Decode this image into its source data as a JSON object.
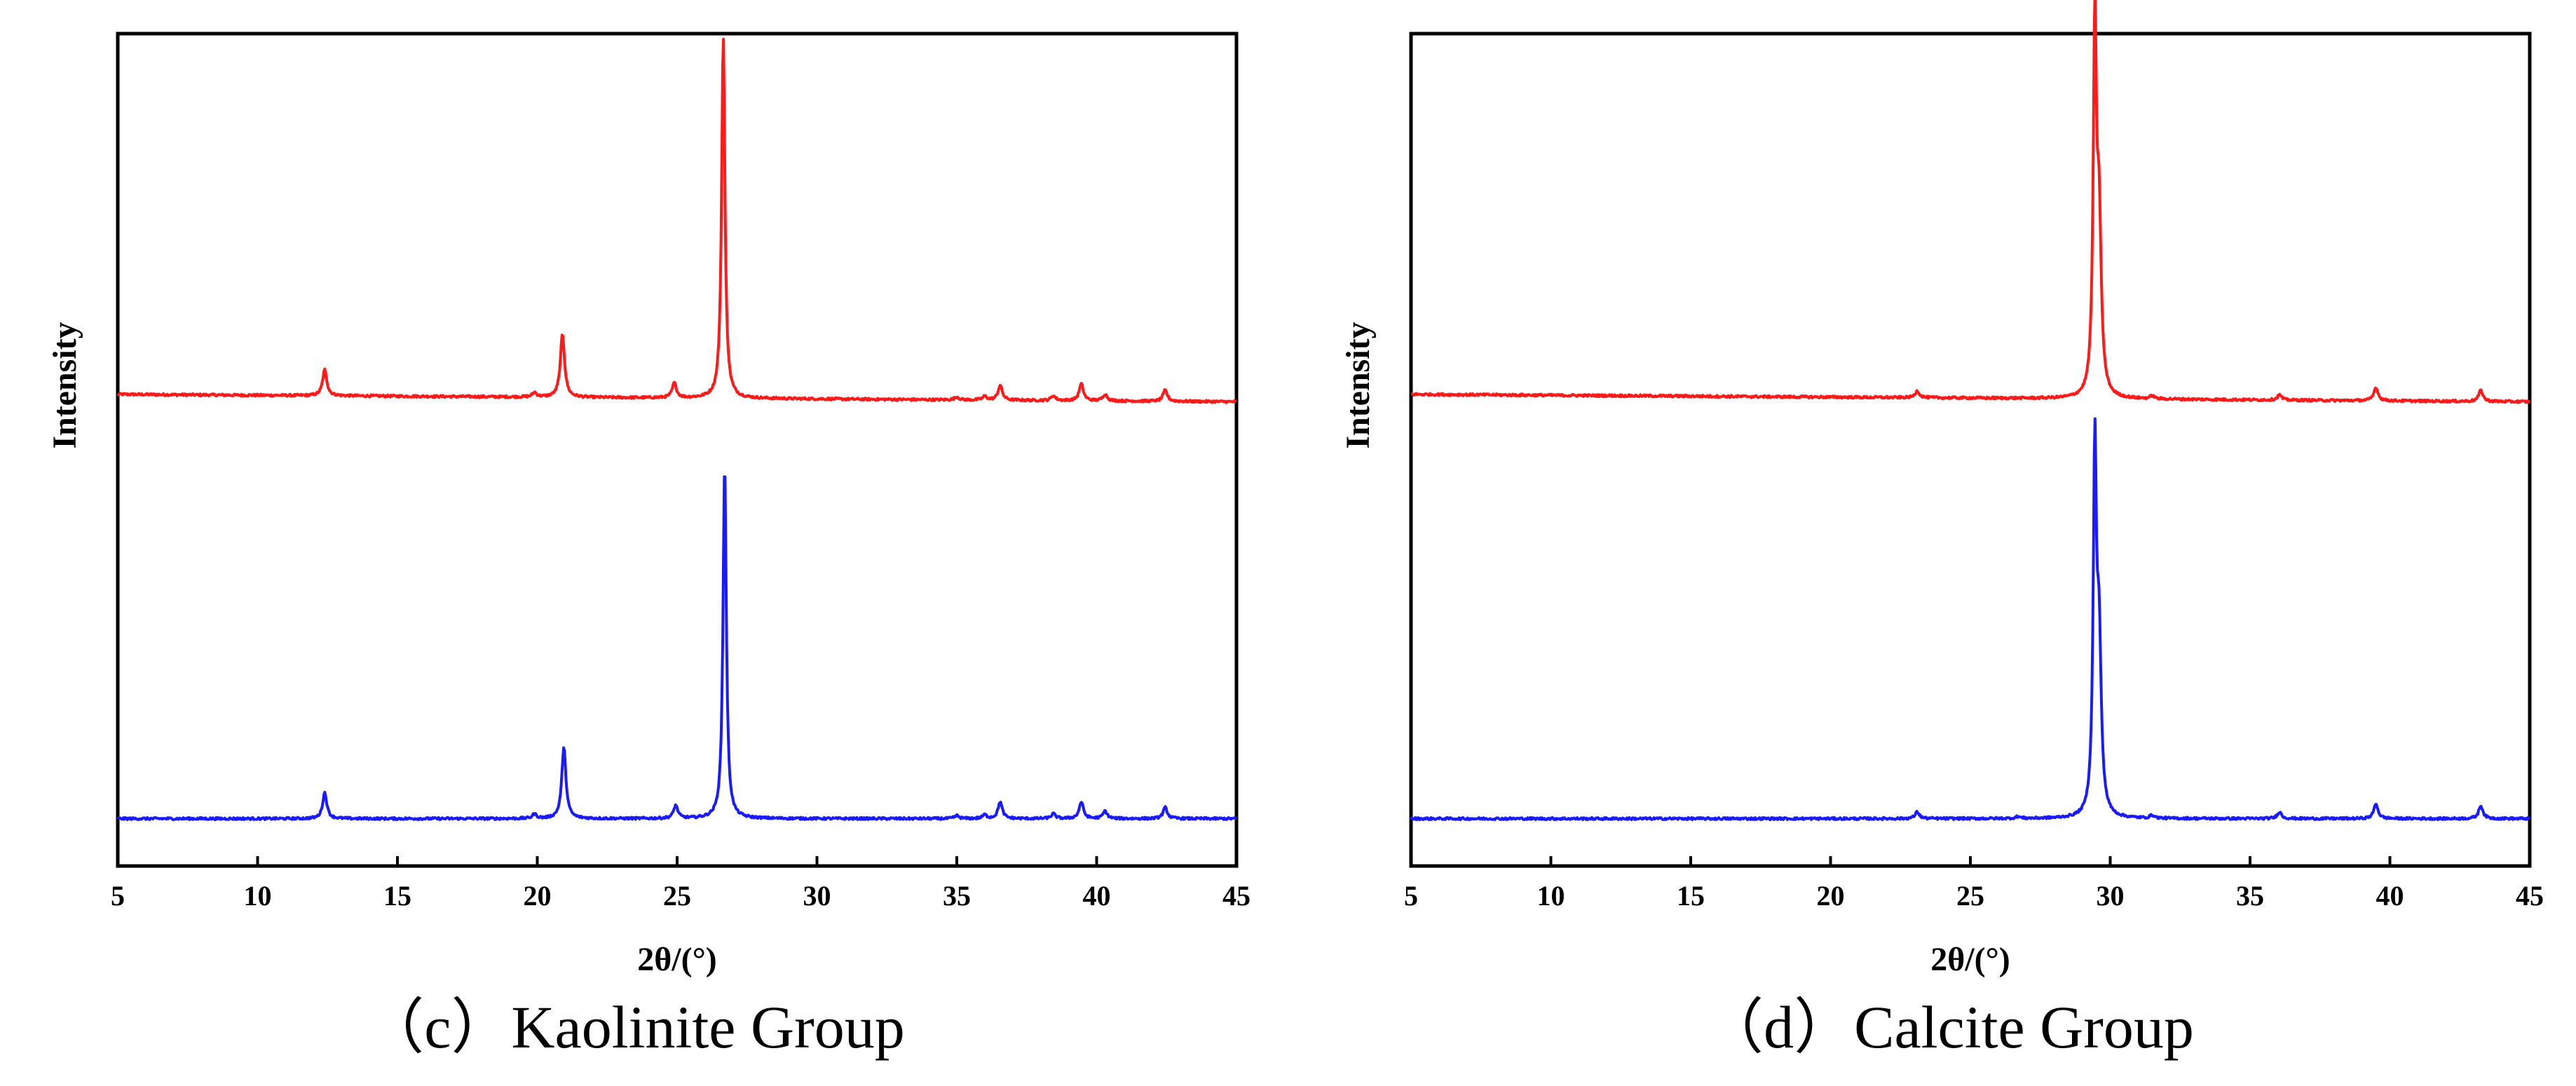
{
  "chart_data": [
    {
      "type": "line",
      "caption": "（c）Kaolinite Group",
      "xlabel": "2θ/(°)",
      "ylabel": "Intensity",
      "xlim": [
        5,
        45
      ],
      "xticks": [
        5,
        10,
        15,
        20,
        25,
        30,
        35,
        40,
        45
      ],
      "grid": false,
      "series": [
        {
          "color": "#ff1a1a",
          "baseline": 0.02,
          "peaks": [
            {
              "x": 12.4,
              "h": 0.07
            },
            {
              "x": 19.9,
              "h": 0.012
            },
            {
              "x": 20.9,
              "h": 0.17
            },
            {
              "x": 24.9,
              "h": 0.04
            },
            {
              "x": 26.65,
              "h": 0.98
            },
            {
              "x": 35.0,
              "h": 0.008
            },
            {
              "x": 36.0,
              "h": 0.01
            },
            {
              "x": 36.55,
              "h": 0.04
            },
            {
              "x": 38.45,
              "h": 0.013
            },
            {
              "x": 39.45,
              "h": 0.045
            },
            {
              "x": 40.3,
              "h": 0.018
            },
            {
              "x": 42.45,
              "h": 0.03
            }
          ]
        },
        {
          "color": "#1a1aff",
          "baseline": 0.0,
          "peaks": [
            {
              "x": 12.4,
              "h": 0.07
            },
            {
              "x": 19.9,
              "h": 0.012
            },
            {
              "x": 20.95,
              "h": 0.19
            },
            {
              "x": 24.95,
              "h": 0.035
            },
            {
              "x": 26.7,
              "h": 0.96
            },
            {
              "x": 35.0,
              "h": 0.008
            },
            {
              "x": 36.0,
              "h": 0.01
            },
            {
              "x": 36.55,
              "h": 0.045
            },
            {
              "x": 38.45,
              "h": 0.013
            },
            {
              "x": 39.45,
              "h": 0.045
            },
            {
              "x": 40.3,
              "h": 0.02
            },
            {
              "x": 42.45,
              "h": 0.03
            }
          ]
        }
      ]
    },
    {
      "type": "line",
      "caption": "（d）Calcite Group",
      "xlabel": "2θ/(°)",
      "ylabel": "Intensity",
      "xlim": [
        5,
        45
      ],
      "xticks": [
        5,
        10,
        15,
        20,
        25,
        30,
        35,
        40,
        45
      ],
      "grid": false,
      "series": [
        {
          "color": "#ff1a1a",
          "baseline": 0.02,
          "peaks": [
            {
              "x": 23.1,
              "h": 0.018
            },
            {
              "x": 29.45,
              "h": 0.98
            },
            {
              "x": 29.6,
              "h": 0.45
            },
            {
              "x": 31.5,
              "h": 0.008
            },
            {
              "x": 36.05,
              "h": 0.014
            },
            {
              "x": 39.5,
              "h": 0.036
            },
            {
              "x": 43.25,
              "h": 0.03
            }
          ]
        },
        {
          "color": "#1a1aff",
          "baseline": 0.0,
          "peaks": [
            {
              "x": 23.1,
              "h": 0.018
            },
            {
              "x": 26.7,
              "h": 0.005
            },
            {
              "x": 29.45,
              "h": 0.96
            },
            {
              "x": 29.6,
              "h": 0.45
            },
            {
              "x": 31.5,
              "h": 0.008
            },
            {
              "x": 36.05,
              "h": 0.018
            },
            {
              "x": 39.5,
              "h": 0.04
            },
            {
              "x": 43.25,
              "h": 0.035
            }
          ]
        }
      ]
    }
  ]
}
